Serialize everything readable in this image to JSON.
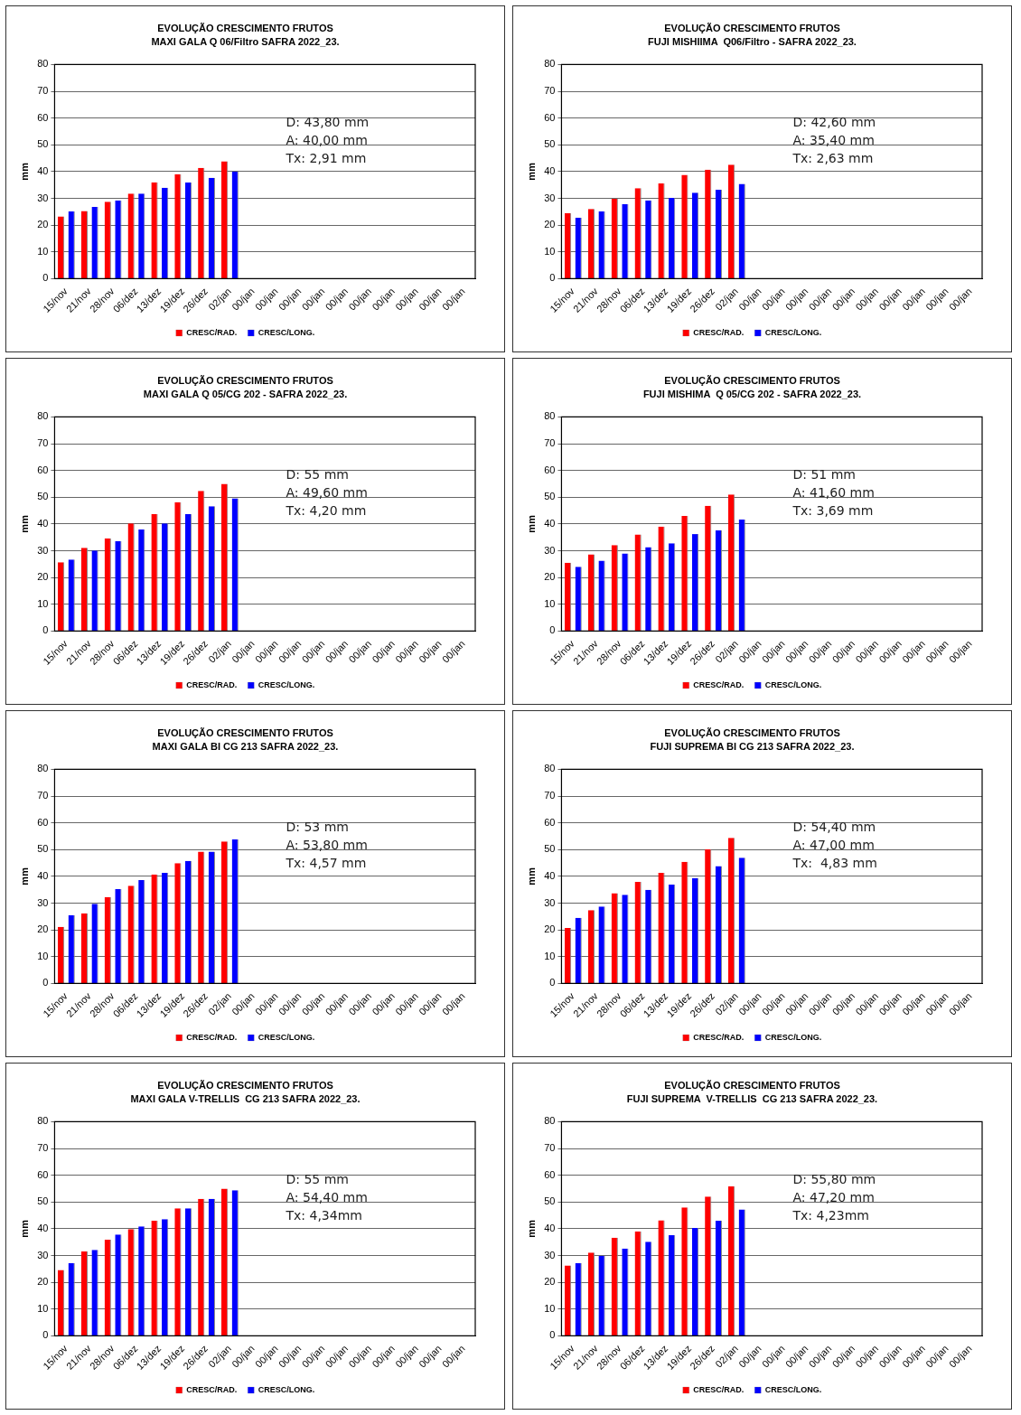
{
  "chart_data": [
    {
      "type": "bar",
      "title": "EVOLUÇÃO CRESCIMENTO FRUTOS",
      "subtitle": "MAXI GALA Q 06/Filtro SAFRA 2022_23.",
      "ylabel": "mm",
      "categories": [
        "15/nov",
        "21/nov",
        "28/nov",
        "06/dez",
        "13/dez",
        "19/dez",
        "26/dez",
        "02/jan",
        "00/jan",
        "00/jan",
        "00/jan",
        "00/jan",
        "00/jan",
        "00/jan",
        "00/jan",
        "00/jan",
        "00/jan",
        "00/jan"
      ],
      "series": [
        {
          "name": "CRESC/RAD.",
          "color": "#ff0000",
          "values": [
            23.2,
            25.3,
            28.7,
            31.8,
            36.0,
            39.0,
            41.4,
            43.8,
            null,
            null,
            null,
            null,
            null,
            null,
            null,
            null,
            null,
            null
          ]
        },
        {
          "name": "CRESC/LONG.",
          "color": "#0000ff",
          "values": [
            25.1,
            26.8,
            29.2,
            31.8,
            34.0,
            35.9,
            37.7,
            40.0,
            null,
            null,
            null,
            null,
            null,
            null,
            null,
            null,
            null,
            null
          ]
        }
      ],
      "ylim": [
        0,
        80
      ],
      "yticks": [
        0,
        10,
        20,
        30,
        40,
        50,
        60,
        70,
        80
      ],
      "grid": "y",
      "legend": "bottom",
      "annotations": [
        "D: 43,80 mm",
        "A: 40,00 mm",
        "Tx: 2,91 mm"
      ]
    },
    {
      "type": "bar",
      "title": "EVOLUÇÃO CRESCIMENTO FRUTOS",
      "subtitle": "FUJI MISHIIMA  Q06/Filtro - SAFRA 2022_23.",
      "ylabel": "mm",
      "categories": [
        "15/nov",
        "21/nov",
        "28/nov",
        "06/dez",
        "13/dez",
        "19/dez",
        "26/dez",
        "02/jan",
        "00/jan",
        "00/jan",
        "00/jan",
        "00/jan",
        "00/jan",
        "00/jan",
        "00/jan",
        "00/jan",
        "00/jan",
        "00/jan"
      ],
      "series": [
        {
          "name": "CRESC/RAD.",
          "color": "#ff0000",
          "values": [
            24.4,
            26.0,
            29.8,
            33.8,
            35.6,
            38.8,
            40.7,
            42.6,
            null,
            null,
            null,
            null,
            null,
            null,
            null,
            null,
            null,
            null
          ]
        },
        {
          "name": "CRESC/LONG.",
          "color": "#0000ff",
          "values": [
            22.7,
            25.1,
            27.8,
            29.2,
            30.2,
            32.1,
            33.2,
            35.4,
            null,
            null,
            null,
            null,
            null,
            null,
            null,
            null,
            null,
            null
          ]
        }
      ],
      "ylim": [
        0,
        80
      ],
      "yticks": [
        0,
        10,
        20,
        30,
        40,
        50,
        60,
        70,
        80
      ],
      "grid": "y",
      "legend": "bottom",
      "annotations": [
        "D: 42,60 mm",
        "A: 35,40 mm",
        "Tx: 2,63 mm"
      ]
    },
    {
      "type": "bar",
      "title": "EVOLUÇÃO CRESCIMENTO FRUTOS",
      "subtitle": "MAXI GALA Q 05/CG 202 - SAFRA 2022_23.",
      "ylabel": "mm",
      "categories": [
        "15/nov",
        "21/nov",
        "28/nov",
        "06/dez",
        "13/dez",
        "19/dez",
        "26/dez",
        "02/jan",
        "00/jan",
        "00/jan",
        "00/jan",
        "00/jan",
        "00/jan",
        "00/jan",
        "00/jan",
        "00/jan",
        "00/jan",
        "00/jan"
      ],
      "series": [
        {
          "name": "CRESC/RAD.",
          "color": "#ff0000",
          "values": [
            25.7,
            31.1,
            34.6,
            40.2,
            43.7,
            48.1,
            52.4,
            55.0,
            null,
            null,
            null,
            null,
            null,
            null,
            null,
            null,
            null,
            null
          ]
        },
        {
          "name": "CRESC/LONG.",
          "color": "#0000ff",
          "values": [
            26.7,
            30.1,
            33.6,
            37.9,
            40.2,
            43.7,
            46.6,
            49.6,
            null,
            null,
            null,
            null,
            null,
            null,
            null,
            null,
            null,
            null
          ]
        }
      ],
      "ylim": [
        0,
        80
      ],
      "yticks": [
        0,
        10,
        20,
        30,
        40,
        50,
        60,
        70,
        80
      ],
      "grid": "y",
      "legend": "bottom",
      "annotations": [
        "D: 55 mm",
        "A: 49,60 mm",
        "Tx: 4,20 mm"
      ]
    },
    {
      "type": "bar",
      "title": "EVOLUÇÃO CRESCIMENTO FRUTOS",
      "subtitle": "FUJI MISHIMA  Q 05/CG 202 - SAFRA 2022_23.",
      "ylabel": "mm",
      "categories": [
        "15/nov",
        "21/nov",
        "28/nov",
        "06/dez",
        "13/dez",
        "19/dez",
        "26/dez",
        "02/jan",
        "00/jan",
        "00/jan",
        "00/jan",
        "00/jan",
        "00/jan",
        "00/jan",
        "00/jan",
        "00/jan",
        "00/jan",
        "00/jan"
      ],
      "series": [
        {
          "name": "CRESC/RAD.",
          "color": "#ff0000",
          "values": [
            25.5,
            28.6,
            32.1,
            36.1,
            39.0,
            43.0,
            46.8,
            51.0,
            null,
            null,
            null,
            null,
            null,
            null,
            null,
            null,
            null,
            null
          ]
        },
        {
          "name": "CRESC/LONG.",
          "color": "#0000ff",
          "values": [
            24.0,
            26.3,
            29.0,
            31.3,
            32.8,
            36.2,
            37.6,
            41.6,
            null,
            null,
            null,
            null,
            null,
            null,
            null,
            null,
            null,
            null
          ]
        }
      ],
      "ylim": [
        0,
        80
      ],
      "yticks": [
        0,
        10,
        20,
        30,
        40,
        50,
        60,
        70,
        80
      ],
      "grid": "y",
      "legend": "bottom",
      "annotations": [
        "D: 51 mm",
        "A: 41,60 mm",
        "Tx: 3,69 mm"
      ]
    },
    {
      "type": "bar",
      "title": "EVOLUÇÃO CRESCIMENTO FRUTOS",
      "subtitle": "MAXI GALA BI CG 213 SAFRA 2022_23.",
      "ylabel": "mm",
      "categories": [
        "15/nov",
        "21/nov",
        "28/nov",
        "06/dez",
        "13/dez",
        "19/dez",
        "26/dez",
        "02/jan",
        "00/jan",
        "00/jan",
        "00/jan",
        "00/jan",
        "00/jan",
        "00/jan",
        "00/jan",
        "00/jan",
        "00/jan",
        "00/jan"
      ],
      "series": [
        {
          "name": "CRESC/RAD.",
          "color": "#ff0000",
          "values": [
            21.1,
            26.2,
            32.3,
            36.5,
            40.7,
            44.9,
            49.2,
            53.0,
            null,
            null,
            null,
            null,
            null,
            null,
            null,
            null,
            null,
            null
          ]
        },
        {
          "name": "CRESC/LONG.",
          "color": "#0000ff",
          "values": [
            25.5,
            29.7,
            35.2,
            38.6,
            41.3,
            45.8,
            49.2,
            53.8,
            null,
            null,
            null,
            null,
            null,
            null,
            null,
            null,
            null,
            null
          ]
        }
      ],
      "ylim": [
        0,
        80
      ],
      "yticks": [
        0,
        10,
        20,
        30,
        40,
        50,
        60,
        70,
        80
      ],
      "grid": "y",
      "legend": "bottom",
      "annotations": [
        "D: 53 mm",
        "A: 53,80 mm",
        "Tx: 4,57 mm"
      ]
    },
    {
      "type": "bar",
      "title": "EVOLUÇÃO CRESCIMENTO FRUTOS",
      "subtitle": "FUJI SUPREMA BI CG 213 SAFRA 2022_23.",
      "ylabel": "mm",
      "categories": [
        "15/nov",
        "21/nov",
        "28/nov",
        "06/dez",
        "13/dez",
        "19/dez",
        "26/dez",
        "02/jan",
        "00/jan",
        "00/jan",
        "00/jan",
        "00/jan",
        "00/jan",
        "00/jan",
        "00/jan",
        "00/jan",
        "00/jan",
        "00/jan"
      ],
      "series": [
        {
          "name": "CRESC/RAD.",
          "color": "#ff0000",
          "values": [
            20.7,
            27.4,
            33.7,
            37.9,
            41.3,
            45.4,
            50.1,
            54.4,
            null,
            null,
            null,
            null,
            null,
            null,
            null,
            null,
            null,
            null
          ]
        },
        {
          "name": "CRESC/LONG.",
          "color": "#0000ff",
          "values": [
            24.5,
            28.7,
            33.1,
            35.0,
            36.9,
            39.3,
            43.8,
            47.0,
            null,
            null,
            null,
            null,
            null,
            null,
            null,
            null,
            null,
            null
          ]
        }
      ],
      "ylim": [
        0,
        80
      ],
      "yticks": [
        0,
        10,
        20,
        30,
        40,
        50,
        60,
        70,
        80
      ],
      "grid": "y",
      "legend": "bottom",
      "annotations": [
        "D: 54,40 mm",
        "A: 47,00 mm",
        "Tx:  4,83 mm"
      ]
    },
    {
      "type": "bar",
      "title": "EVOLUÇÃO CRESCIMENTO FRUTOS",
      "subtitle": "MAXI GALA V-TRELLIS  CG 213 SAFRA 2022_23.",
      "ylabel": "mm",
      "categories": [
        "15/nov",
        "21/nov",
        "28/nov",
        "06/dez",
        "13/dez",
        "19/dez",
        "26/dez",
        "02/jan",
        "00/jan",
        "00/jan",
        "00/jan",
        "00/jan",
        "00/jan",
        "00/jan",
        "00/jan",
        "00/jan",
        "00/jan",
        "00/jan"
      ],
      "series": [
        {
          "name": "CRESC/RAD.",
          "color": "#ff0000",
          "values": [
            24.6,
            31.5,
            35.9,
            39.9,
            43.0,
            47.6,
            51.2,
            55.0,
            null,
            null,
            null,
            null,
            null,
            null,
            null,
            null,
            null,
            null
          ]
        },
        {
          "name": "CRESC/LONG.",
          "color": "#0000ff",
          "values": [
            27.1,
            32.1,
            37.8,
            40.9,
            43.6,
            47.6,
            51.2,
            54.4,
            null,
            null,
            null,
            null,
            null,
            null,
            null,
            null,
            null,
            null
          ]
        }
      ],
      "ylim": [
        0,
        80
      ],
      "yticks": [
        0,
        10,
        20,
        30,
        40,
        50,
        60,
        70,
        80
      ],
      "grid": "y",
      "legend": "bottom",
      "annotations": [
        "D: 55 mm",
        "A: 54,40 mm",
        "Tx: 4,34mm"
      ]
    },
    {
      "type": "bar",
      "title": "EVOLUÇÃO CRESCIMENTO FRUTOS",
      "subtitle": "FUJI SUPREMA  V-TRELLIS  CG 213 SAFRA 2022_23.",
      "ylabel": "mm",
      "categories": [
        "15/nov",
        "21/nov",
        "28/nov",
        "06/dez",
        "13/dez",
        "19/dez",
        "26/dez",
        "02/jan",
        "00/jan",
        "00/jan",
        "00/jan",
        "00/jan",
        "00/jan",
        "00/jan",
        "00/jan",
        "00/jan",
        "00/jan",
        "00/jan"
      ],
      "series": [
        {
          "name": "CRESC/RAD.",
          "color": "#ff0000",
          "values": [
            26.3,
            31.1,
            36.7,
            39.0,
            43.2,
            48.0,
            52.0,
            55.8,
            null,
            null,
            null,
            null,
            null,
            null,
            null,
            null,
            null,
            null
          ]
        },
        {
          "name": "CRESC/LONG.",
          "color": "#0000ff",
          "values": [
            27.1,
            29.9,
            32.6,
            35.1,
            37.6,
            40.3,
            43.0,
            47.2,
            null,
            null,
            null,
            null,
            null,
            null,
            null,
            null,
            null,
            null
          ]
        }
      ],
      "ylim": [
        0,
        80
      ],
      "yticks": [
        0,
        10,
        20,
        30,
        40,
        50,
        60,
        70,
        80
      ],
      "grid": "y",
      "legend": "bottom",
      "annotations": [
        "D: 55,80 mm",
        "A: 47,20 mm",
        "Tx: 4,23mm"
      ]
    }
  ]
}
